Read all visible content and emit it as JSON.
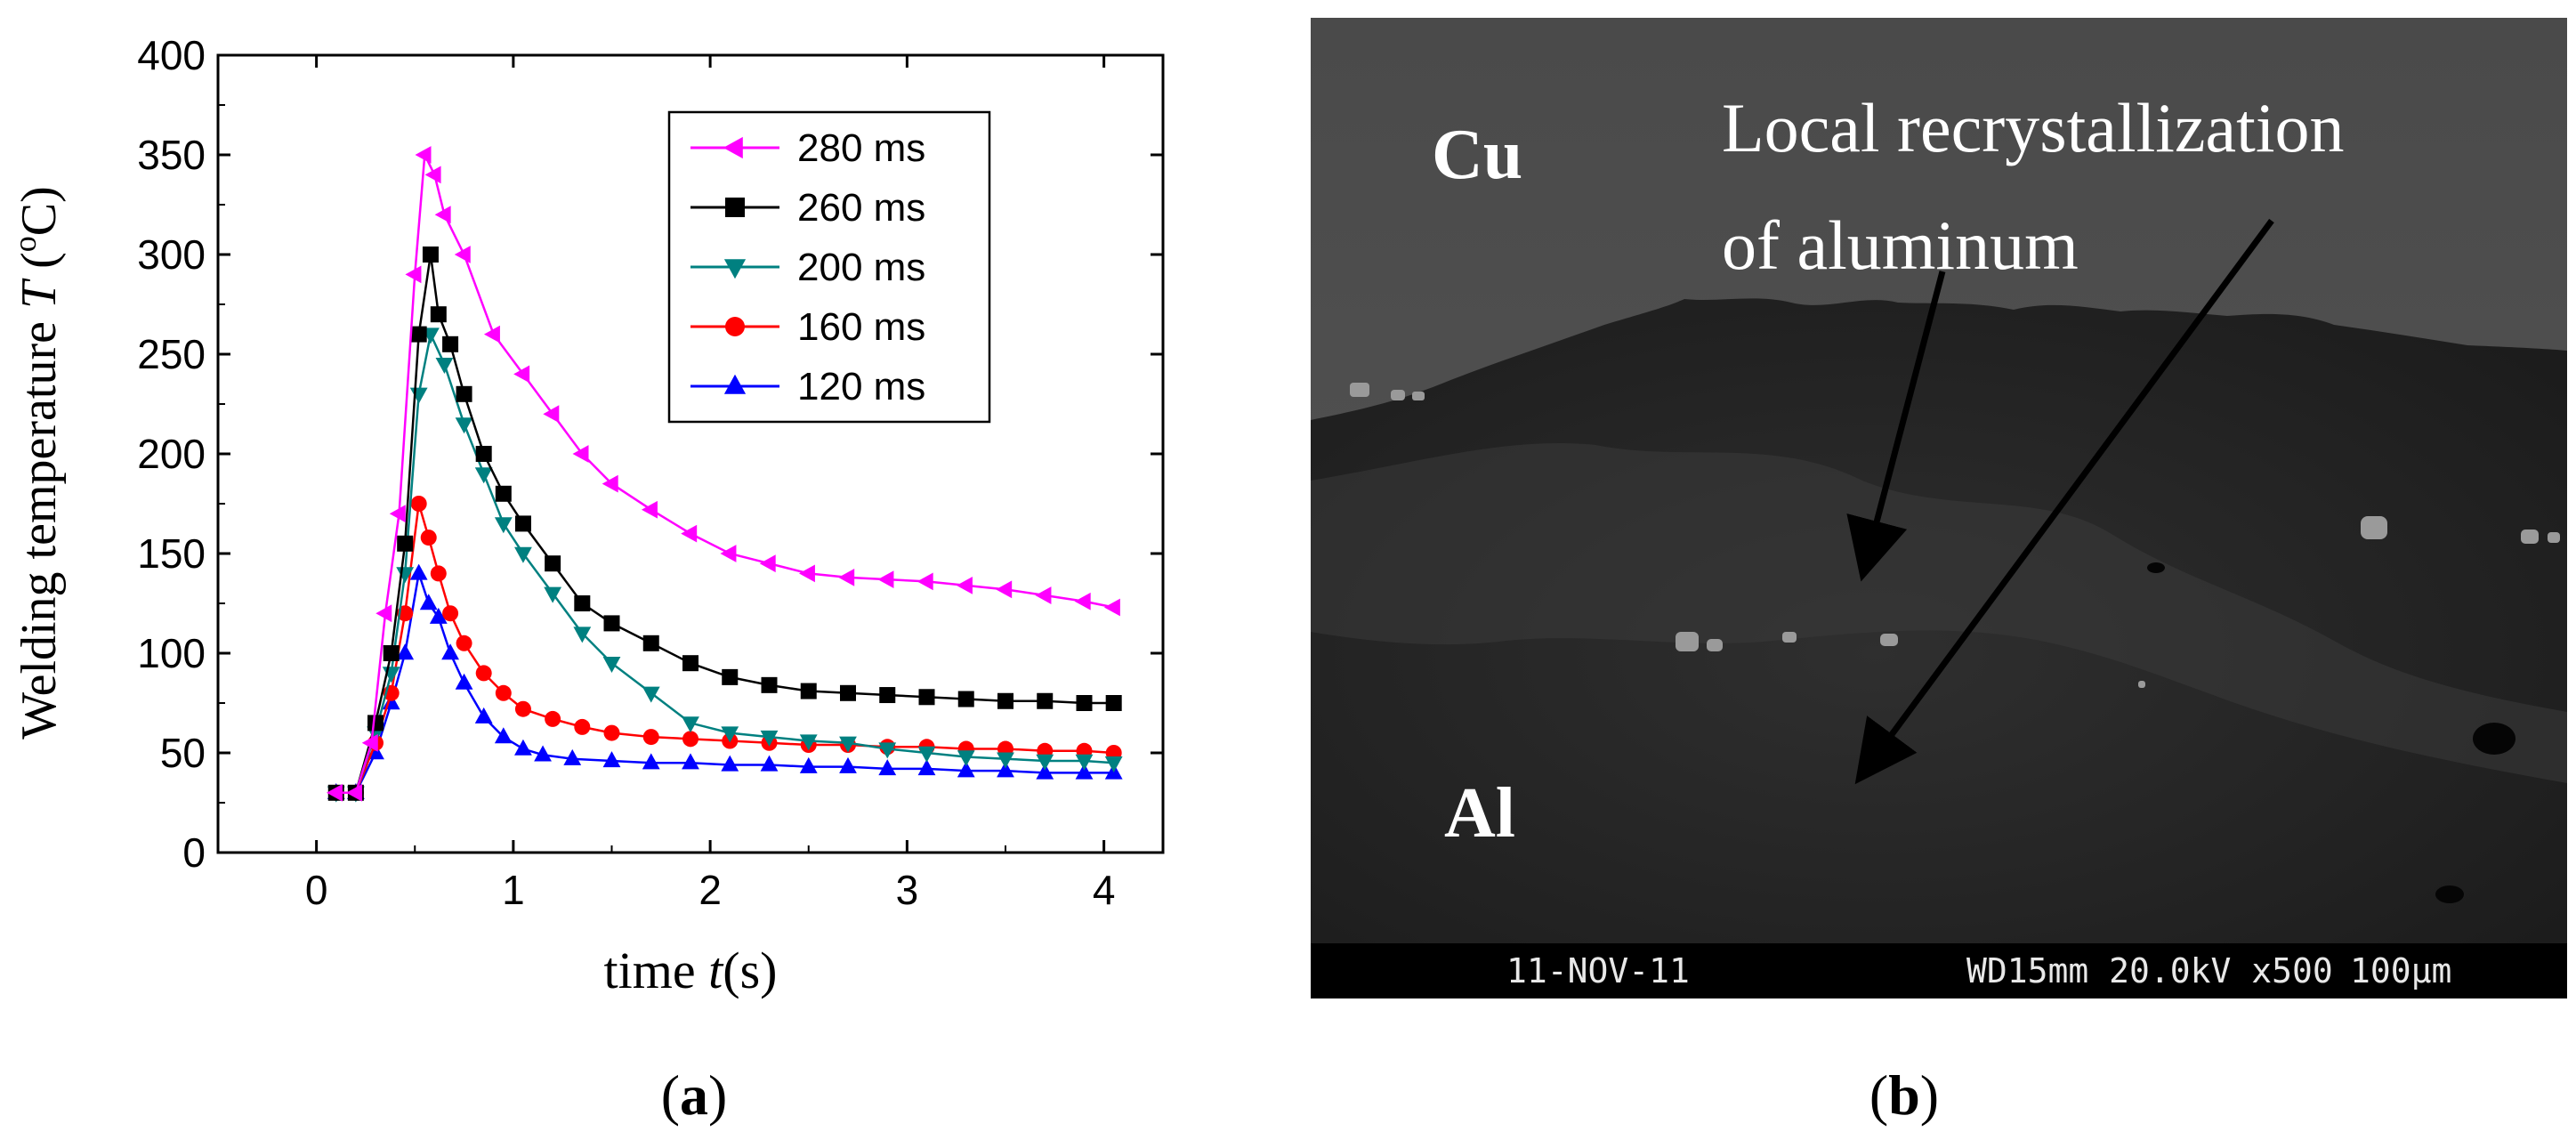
{
  "chart_data": {
    "type": "line",
    "title": "",
    "xlabel_var": "t",
    "xlabel_prefix": "time ",
    "xlabel_suffix": "(s)",
    "ylabel_prefix": "Welding temperature ",
    "ylabel_var": "T",
    "ylabel_suffix_open": " (",
    "ylabel_degree": "o",
    "ylabel_unit": "C)",
    "xlim": [
      -0.5,
      4.3
    ],
    "ylim": [
      0,
      400
    ],
    "xticks": [
      0,
      1,
      2,
      3,
      4
    ],
    "yticks": [
      0,
      50,
      100,
      150,
      200,
      250,
      300,
      350,
      400
    ],
    "legend_position": "top-right",
    "series": [
      {
        "name": "280 ms",
        "color": "#ff00ff",
        "marker": "triangle-left",
        "x": [
          0.1,
          0.2,
          0.28,
          0.35,
          0.42,
          0.5,
          0.55,
          0.6,
          0.65,
          0.75,
          0.9,
          1.05,
          1.2,
          1.35,
          1.5,
          1.7,
          1.9,
          2.1,
          2.3,
          2.5,
          2.7,
          2.9,
          3.1,
          3.3,
          3.5,
          3.7,
          3.9,
          4.05
        ],
        "y": [
          30,
          30,
          55,
          120,
          170,
          290,
          350,
          340,
          320,
          300,
          260,
          240,
          220,
          200,
          185,
          172,
          160,
          150,
          145,
          140,
          138,
          137,
          136,
          134,
          132,
          129,
          126,
          123
        ]
      },
      {
        "name": "260 ms",
        "color": "#000000",
        "marker": "square",
        "x": [
          0.1,
          0.2,
          0.3,
          0.38,
          0.45,
          0.52,
          0.58,
          0.62,
          0.68,
          0.75,
          0.85,
          0.95,
          1.05,
          1.2,
          1.35,
          1.5,
          1.7,
          1.9,
          2.1,
          2.3,
          2.5,
          2.7,
          2.9,
          3.1,
          3.3,
          3.5,
          3.7,
          3.9,
          4.05
        ],
        "y": [
          30,
          30,
          65,
          100,
          155,
          260,
          300,
          270,
          255,
          230,
          200,
          180,
          165,
          145,
          125,
          115,
          105,
          95,
          88,
          84,
          81,
          80,
          79,
          78,
          77,
          76,
          76,
          75,
          75
        ]
      },
      {
        "name": "200 ms",
        "color": "#008080",
        "marker": "triangle-down",
        "x": [
          0.1,
          0.2,
          0.3,
          0.38,
          0.45,
          0.52,
          0.58,
          0.65,
          0.75,
          0.85,
          0.95,
          1.05,
          1.2,
          1.35,
          1.5,
          1.7,
          1.9,
          2.1,
          2.3,
          2.5,
          2.7,
          2.9,
          3.1,
          3.3,
          3.5,
          3.7,
          3.9,
          4.05
        ],
        "y": [
          30,
          30,
          60,
          90,
          140,
          230,
          260,
          245,
          215,
          190,
          165,
          150,
          130,
          110,
          95,
          80,
          65,
          60,
          58,
          56,
          55,
          52,
          50,
          48,
          47,
          46,
          46,
          45
        ]
      },
      {
        "name": "160 ms",
        "color": "#ff0000",
        "marker": "circle",
        "x": [
          0.1,
          0.2,
          0.3,
          0.38,
          0.45,
          0.52,
          0.57,
          0.62,
          0.68,
          0.75,
          0.85,
          0.95,
          1.05,
          1.2,
          1.35,
          1.5,
          1.7,
          1.9,
          2.1,
          2.3,
          2.5,
          2.7,
          2.9,
          3.1,
          3.3,
          3.5,
          3.7,
          3.9,
          4.05
        ],
        "y": [
          30,
          30,
          55,
          80,
          120,
          175,
          158,
          140,
          120,
          105,
          90,
          80,
          72,
          67,
          63,
          60,
          58,
          57,
          56,
          55,
          54,
          54,
          53,
          53,
          52,
          52,
          51,
          51,
          50
        ]
      },
      {
        "name": " 120 ms",
        "color": "#0000ff",
        "marker": "triangle-up",
        "x": [
          0.1,
          0.2,
          0.3,
          0.38,
          0.45,
          0.52,
          0.57,
          0.62,
          0.68,
          0.75,
          0.85,
          0.95,
          1.05,
          1.15,
          1.3,
          1.5,
          1.7,
          1.9,
          2.1,
          2.3,
          2.5,
          2.7,
          2.9,
          3.1,
          3.3,
          3.5,
          3.7,
          3.9,
          4.05
        ],
        "y": [
          30,
          30,
          50,
          75,
          100,
          140,
          125,
          118,
          100,
          85,
          68,
          58,
          52,
          49,
          47,
          46,
          45,
          45,
          44,
          44,
          43,
          43,
          42,
          42,
          41,
          41,
          40,
          40,
          40
        ]
      }
    ]
  },
  "caption_a": "(a)",
  "caption_b": "(b)",
  "caption_a_letter": "a",
  "caption_b_letter": "b",
  "micrograph": {
    "label_cu": "Cu",
    "label_al": "Al",
    "annotation_line1": "Local recrystallization",
    "annotation_line2": "of aluminum",
    "info_date": "11-NOV-11",
    "info_params": "WD15mm 20.0kV x500",
    "info_scale": "100µm"
  }
}
